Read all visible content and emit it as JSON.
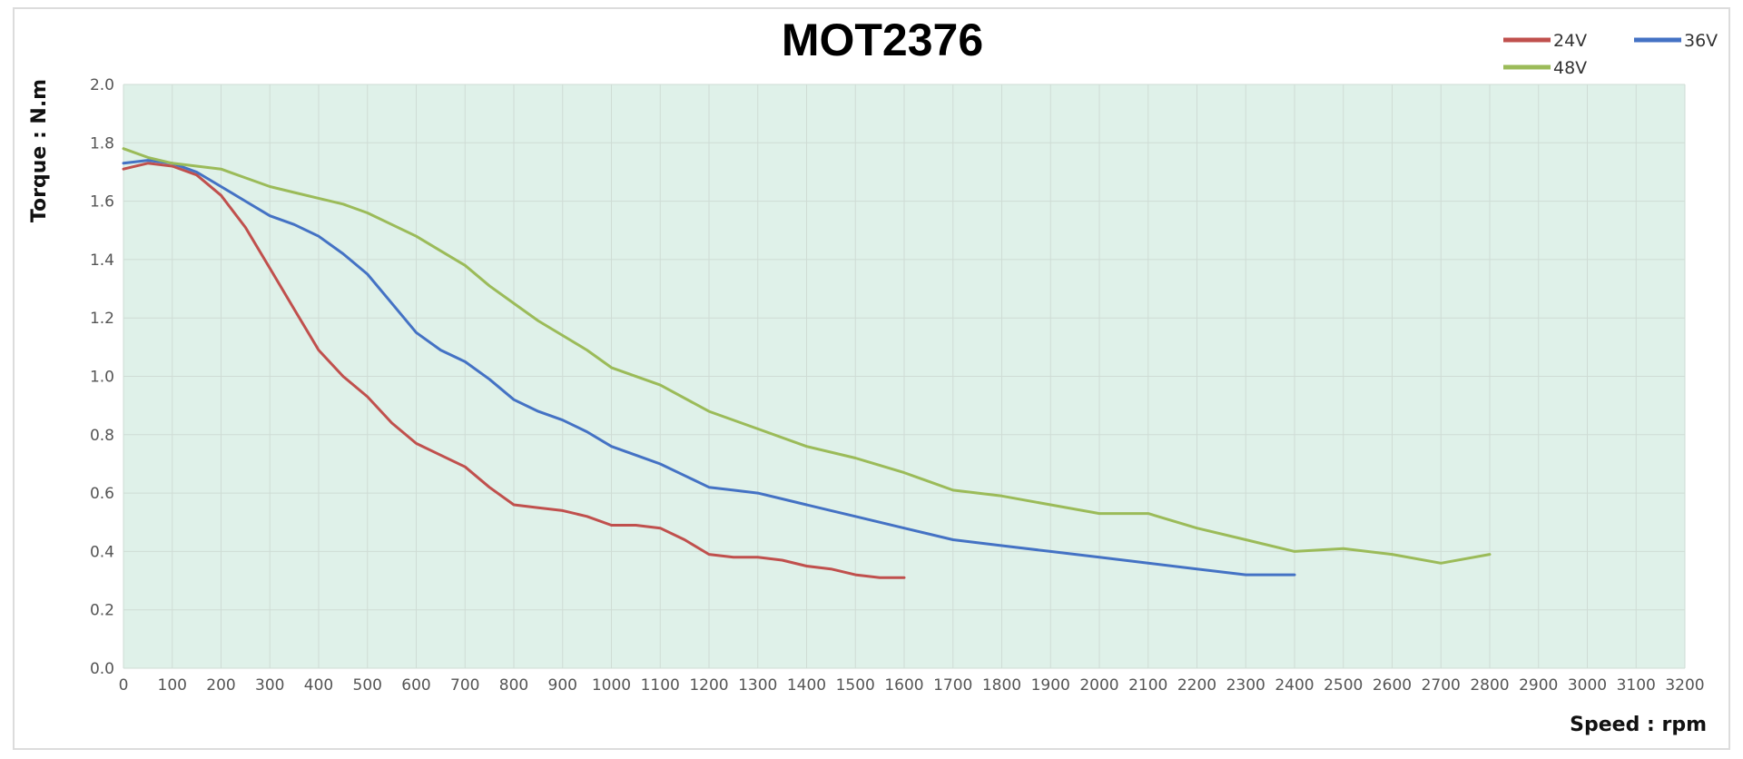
{
  "chart_data": {
    "type": "line",
    "title": "MOT2376",
    "xlabel": "Speed : rpm",
    "ylabel": "Torque : N.m",
    "xlim": [
      0,
      3200
    ],
    "ylim": [
      0,
      2.0
    ],
    "x_ticks": [
      0,
      100,
      200,
      300,
      400,
      500,
      600,
      700,
      800,
      900,
      1000,
      1100,
      1200,
      1300,
      1400,
      1500,
      1600,
      1700,
      1800,
      1900,
      2000,
      2100,
      2200,
      2300,
      2400,
      2500,
      2600,
      2700,
      2800,
      2900,
      3000,
      3100,
      3200
    ],
    "y_ticks": [
      "0.0",
      "0.2",
      "0.4",
      "0.6",
      "0.8",
      "1.0",
      "1.2",
      "1.4",
      "1.6",
      "1.8",
      "2.0"
    ],
    "grid": true,
    "background": "#dff1e9",
    "legend_position": "top-right",
    "series": [
      {
        "name": "24V",
        "color": "#c0504d",
        "x": [
          0,
          50,
          100,
          150,
          200,
          250,
          300,
          350,
          400,
          450,
          500,
          550,
          600,
          650,
          700,
          750,
          800,
          850,
          900,
          950,
          1000,
          1050,
          1100,
          1150,
          1200,
          1250,
          1300,
          1350,
          1400,
          1450,
          1500,
          1550,
          1600
        ],
        "y": [
          1.71,
          1.73,
          1.72,
          1.69,
          1.62,
          1.51,
          1.37,
          1.23,
          1.09,
          1.0,
          0.93,
          0.84,
          0.77,
          0.73,
          0.69,
          0.62,
          0.56,
          0.55,
          0.54,
          0.52,
          0.49,
          0.49,
          0.48,
          0.44,
          0.39,
          0.38,
          0.38,
          0.37,
          0.35,
          0.34,
          0.32,
          0.31,
          0.31
        ]
      },
      {
        "name": "36V",
        "color": "#4472c4",
        "x": [
          0,
          50,
          100,
          150,
          200,
          250,
          300,
          350,
          400,
          450,
          500,
          550,
          600,
          650,
          700,
          750,
          800,
          850,
          900,
          950,
          1000,
          1050,
          1100,
          1150,
          1200,
          1250,
          1300,
          1350,
          1400,
          1450,
          1500,
          1600,
          1700,
          1800,
          1900,
          2000,
          2100,
          2200,
          2300,
          2400
        ],
        "y": [
          1.73,
          1.74,
          1.73,
          1.7,
          1.65,
          1.6,
          1.55,
          1.52,
          1.48,
          1.42,
          1.35,
          1.25,
          1.15,
          1.09,
          1.05,
          0.99,
          0.92,
          0.88,
          0.85,
          0.81,
          0.76,
          0.73,
          0.7,
          0.66,
          0.62,
          0.61,
          0.6,
          0.58,
          0.56,
          0.54,
          0.52,
          0.48,
          0.44,
          0.42,
          0.4,
          0.38,
          0.36,
          0.34,
          0.32,
          0.32
        ]
      },
      {
        "name": "48V",
        "color": "#9bbb59",
        "x": [
          0,
          50,
          100,
          150,
          200,
          250,
          300,
          350,
          400,
          450,
          500,
          550,
          600,
          650,
          700,
          750,
          800,
          850,
          900,
          950,
          1000,
          1100,
          1200,
          1300,
          1400,
          1500,
          1600,
          1700,
          1800,
          1900,
          2000,
          2100,
          2200,
          2300,
          2400,
          2500,
          2600,
          2700,
          2800
        ],
        "y": [
          1.78,
          1.75,
          1.73,
          1.72,
          1.71,
          1.68,
          1.65,
          1.63,
          1.61,
          1.59,
          1.56,
          1.52,
          1.48,
          1.43,
          1.38,
          1.31,
          1.25,
          1.19,
          1.14,
          1.09,
          1.03,
          0.97,
          0.88,
          0.82,
          0.76,
          0.72,
          0.67,
          0.61,
          0.59,
          0.56,
          0.53,
          0.53,
          0.48,
          0.44,
          0.4,
          0.41,
          0.39,
          0.36,
          0.39
        ]
      }
    ]
  }
}
